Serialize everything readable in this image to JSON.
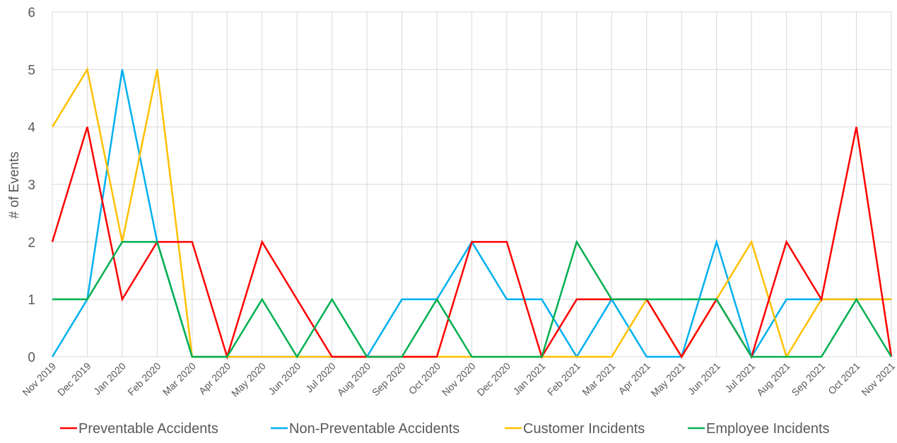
{
  "chart_data": {
    "type": "line",
    "ylabel": "# of Events",
    "xlabel": "",
    "ylim": [
      0,
      6
    ],
    "yticks": [
      0,
      1,
      2,
      3,
      4,
      5,
      6
    ],
    "grid": "both",
    "legend_position": "bottom",
    "categories": [
      "Nov 2019",
      "Dec 2019",
      "Jan 2020",
      "Feb 2020",
      "Mar 2020",
      "Apr 2020",
      "May 2020",
      "Jun 2020",
      "Jul 2020",
      "Aug 2020",
      "Sep 2020",
      "Oct 2020",
      "Nov 2020",
      "Dec 2020",
      "Jan 2021",
      "Feb 2021",
      "Mar 2021",
      "Apr 2021",
      "May 2021",
      "Jun 2021",
      "Jul 2021",
      "Aug 2021",
      "Sep 2021",
      "Oct 2021",
      "Nov 2021"
    ],
    "series": [
      {
        "name": "Preventable Accidents",
        "color": "#ff0000",
        "values": [
          2,
          4,
          1,
          2,
          2,
          0,
          2,
          1,
          0,
          0,
          0,
          0,
          2,
          2,
          0,
          1,
          1,
          1,
          0,
          1,
          0,
          2,
          1,
          4,
          0
        ]
      },
      {
        "name": "Non-Preventable Accidents",
        "color": "#00b0f0",
        "values": [
          0,
          1,
          5,
          2,
          0,
          0,
          0,
          0,
          0,
          0,
          1,
          1,
          2,
          1,
          1,
          0,
          1,
          0,
          0,
          2,
          0,
          1,
          1,
          1,
          1
        ]
      },
      {
        "name": "Customer Incidents",
        "color": "#ffc000",
        "values": [
          4,
          5,
          2,
          5,
          0,
          0,
          0,
          0,
          0,
          0,
          0,
          0,
          0,
          0,
          0,
          0,
          0,
          1,
          0,
          1,
          2,
          0,
          1,
          1,
          1
        ]
      },
      {
        "name": "Employee Incidents",
        "color": "#00b050",
        "values": [
          1,
          1,
          2,
          2,
          0,
          0,
          1,
          0,
          1,
          0,
          0,
          1,
          0,
          0,
          0,
          2,
          1,
          1,
          1,
          1,
          0,
          0,
          0,
          1,
          0
        ]
      }
    ]
  }
}
